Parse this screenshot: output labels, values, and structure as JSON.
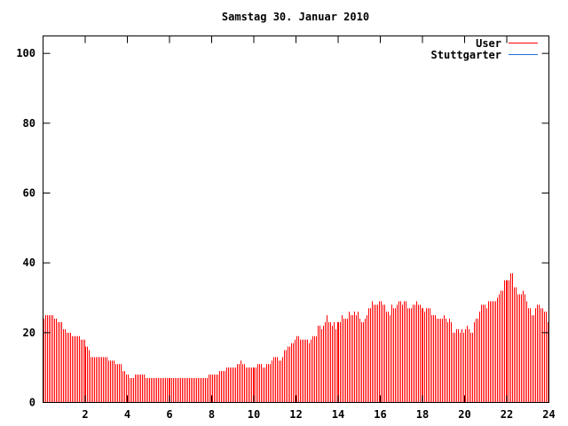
{
  "chart_data": {
    "type": "bar",
    "title": "Samstag 30. Januar 2010",
    "xlabel": "",
    "ylabel": "",
    "xlim": [
      0,
      24
    ],
    "ylim": [
      0,
      105
    ],
    "x_step_hours": 0.0833333,
    "xticks": [
      "2",
      "4",
      "6",
      "8",
      "10",
      "12",
      "14",
      "16",
      "18",
      "20",
      "22",
      "24"
    ],
    "yticks": [
      "0",
      "20",
      "40",
      "60",
      "80",
      "100"
    ],
    "legend_position": "top-right",
    "series": [
      {
        "name": "User",
        "color": "#ff0000"
      },
      {
        "name": "Stuttgarter",
        "color": "#1f6fd8"
      }
    ],
    "values": [
      24,
      25,
      25,
      25,
      25,
      25,
      24,
      24,
      23,
      23,
      23,
      21,
      21,
      20,
      20,
      20,
      19,
      19,
      19,
      19,
      19,
      18,
      18,
      18,
      16,
      16,
      15,
      13,
      13,
      13,
      13,
      13,
      13,
      13,
      13,
      13,
      13,
      12,
      12,
      12,
      12,
      11,
      11,
      11,
      11,
      9,
      9,
      8,
      8,
      7,
      7,
      7,
      8,
      8,
      8,
      8,
      8,
      8,
      7,
      7,
      7,
      7,
      7,
      7,
      7,
      7,
      7,
      7,
      7,
      7,
      7,
      7,
      7,
      7,
      7,
      7,
      7,
      7,
      7,
      7,
      7,
      7,
      7,
      7,
      7,
      7,
      7,
      7,
      7,
      7,
      7,
      7,
      7,
      7,
      8,
      8,
      8,
      8,
      8,
      8,
      9,
      9,
      9,
      9,
      10,
      10,
      10,
      10,
      10,
      10,
      11,
      11,
      12,
      11,
      11,
      10,
      10,
      10,
      10,
      10,
      10,
      10,
      11,
      11,
      11,
      10,
      10,
      11,
      11,
      11,
      12,
      13,
      13,
      13,
      12,
      12,
      13,
      15,
      15,
      16,
      16,
      17,
      17,
      18,
      19,
      19,
      18,
      18,
      18,
      18,
      18,
      17,
      18,
      19,
      19,
      19,
      22,
      22,
      21,
      22,
      23,
      25,
      23,
      23,
      22,
      23,
      21,
      23,
      23,
      23,
      25,
      24,
      24,
      24,
      26,
      25,
      25,
      26,
      25,
      26,
      24,
      23,
      23,
      24,
      25,
      27,
      27,
      29,
      28,
      28,
      28,
      29,
      29,
      28,
      28,
      26,
      26,
      25,
      28,
      27,
      27,
      28,
      29,
      29,
      28,
      29,
      29,
      27,
      27,
      27,
      28,
      28,
      29,
      28,
      28,
      27,
      27,
      26,
      27,
      27,
      27,
      25,
      25,
      25,
      24,
      24,
      24,
      24,
      25,
      24,
      23,
      24,
      23,
      20,
      20,
      21,
      21,
      20,
      21,
      20,
      21,
      22,
      21,
      20,
      20,
      23,
      24,
      24,
      26,
      28,
      28,
      28,
      27,
      29,
      29,
      29,
      29,
      29,
      30,
      31,
      32,
      32,
      35,
      35,
      35,
      35,
      37,
      37,
      33,
      33,
      31,
      31,
      31,
      32,
      31,
      29,
      27,
      27,
      25,
      25,
      27,
      28,
      28,
      27,
      27,
      26,
      26,
      23
    ]
  }
}
